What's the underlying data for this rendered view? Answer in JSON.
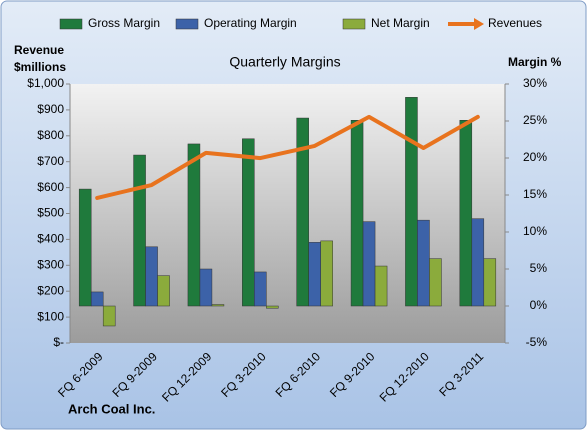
{
  "chart_data": {
    "type": "combo",
    "title": "Quarterly Margins",
    "ylabel": [
      "Revenue",
      "$millions"
    ],
    "y2label": "Margin %",
    "footer": "Arch Coal Inc.",
    "categories": [
      "FQ 6-2009",
      "FQ 9-2009",
      "FQ 12-2009",
      "FQ 3-2010",
      "FQ 6-2010",
      "FQ 9-2010",
      "FQ 12-2010",
      "FQ 3-2011"
    ],
    "series": [
      {
        "name": "Gross Margin",
        "type": "bar",
        "axis": "y2",
        "color": "#1f7a3c",
        "values": [
          15.8,
          20.4,
          21.9,
          22.6,
          25.4,
          25.1,
          28.2,
          25.1
        ]
      },
      {
        "name": "Operating Margin",
        "type": "bar",
        "axis": "y2",
        "color": "#3c62a8",
        "values": [
          1.9,
          8.0,
          5.0,
          4.6,
          8.6,
          11.4,
          11.6,
          11.8
        ]
      },
      {
        "name": "Net Margin",
        "type": "bar",
        "axis": "y2",
        "color": "#8bab3c",
        "values": [
          -2.7,
          4.1,
          0.2,
          -0.3,
          8.8,
          5.4,
          6.4,
          6.4
        ]
      },
      {
        "name": "Revenues",
        "type": "line",
        "axis": "y",
        "color": "#e8731e",
        "values": [
          560,
          610,
          734,
          714,
          761,
          873,
          753,
          873
        ]
      }
    ],
    "ylim": [
      0,
      1000
    ],
    "yticks": [
      {
        "value": 0,
        "label": "$-"
      },
      {
        "value": 100,
        "label": "$100"
      },
      {
        "value": 200,
        "label": "$200"
      },
      {
        "value": 300,
        "label": "$300"
      },
      {
        "value": 400,
        "label": "$400"
      },
      {
        "value": 500,
        "label": "$500"
      },
      {
        "value": 600,
        "label": "$600"
      },
      {
        "value": 700,
        "label": "$700"
      },
      {
        "value": 800,
        "label": "$800"
      },
      {
        "value": 900,
        "label": "$900"
      },
      {
        "value": 1000,
        "label": "$1,000"
      }
    ],
    "y2lim": [
      -5,
      30
    ],
    "y2ticks": [
      {
        "value": -5,
        "label": "-5%"
      },
      {
        "value": 0,
        "label": "0%"
      },
      {
        "value": 5,
        "label": "5%"
      },
      {
        "value": 10,
        "label": "10%"
      },
      {
        "value": 15,
        "label": "15%"
      },
      {
        "value": 20,
        "label": "20%"
      },
      {
        "value": 25,
        "label": "25%"
      },
      {
        "value": 30,
        "label": "30%"
      }
    ],
    "grid": false
  }
}
